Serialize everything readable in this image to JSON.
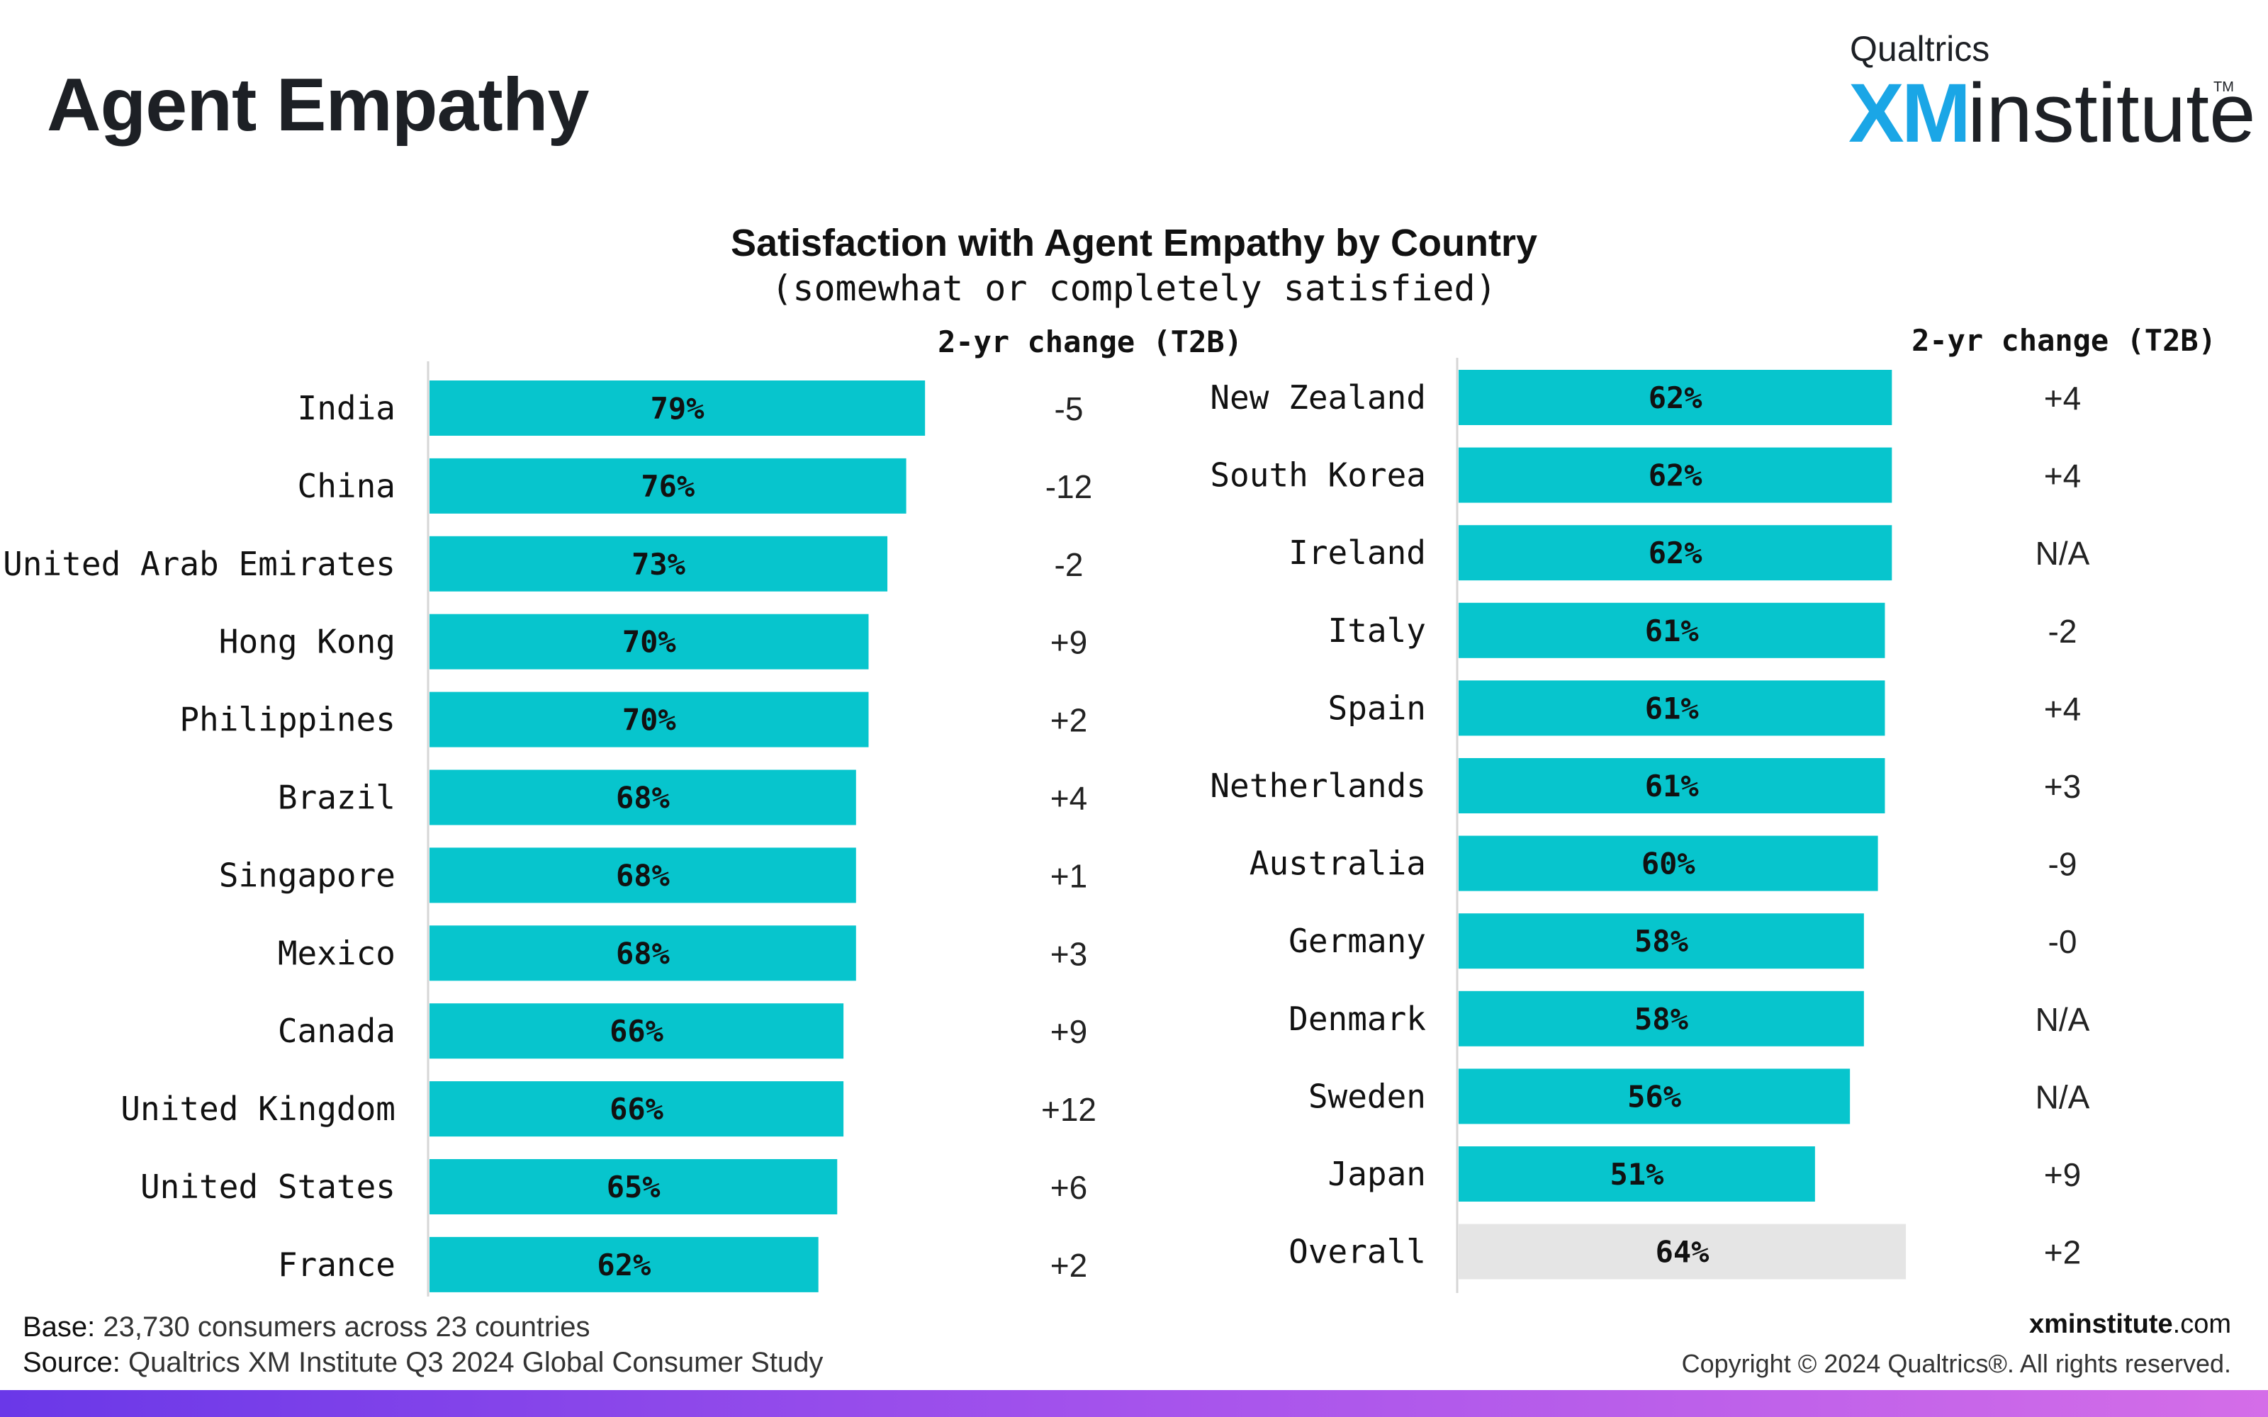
{
  "page": {
    "title": "Agent Empathy",
    "logo": {
      "brand": "Qualtrics",
      "mark": "XM",
      "product": "institute",
      "tm": "TM"
    },
    "footer": {
      "base_label": "Base:",
      "base_text": "23,730 consumers across 23 countries",
      "source_label": "Source:",
      "source_text": "Qualtrics XM Institute Q3 2024 Global Consumer Study",
      "url_bold": "xminstitute",
      "url_rest": ".com",
      "copyright": "Copyright © 2024 Qualtrics®. All rights reserved."
    }
  },
  "chart_data": {
    "type": "bar",
    "orientation": "horizontal",
    "title": "Satisfaction with Agent Empathy by Country",
    "subtitle": "(somewhat or completely satisfied)",
    "change_header": "2-yr change (T2B)",
    "xlim": [
      0,
      100
    ],
    "colors": {
      "bar": "#07c5cd",
      "overall_bar": "#e5e5e5"
    },
    "panels": [
      {
        "categories": [
          "India",
          "China",
          "United Arab Emirates",
          "Hong Kong",
          "Philippines",
          "Brazil",
          "Singapore",
          "Mexico",
          "Canada",
          "United Kingdom",
          "United States",
          "France"
        ],
        "values": [
          79,
          76,
          73,
          70,
          70,
          68,
          68,
          68,
          66,
          66,
          65,
          62
        ],
        "value_labels": [
          "79%",
          "76%",
          "73%",
          "70%",
          "70%",
          "68%",
          "68%",
          "68%",
          "66%",
          "66%",
          "65%",
          "62%"
        ],
        "changes": [
          "-5",
          "-12",
          "-2",
          "+9",
          "+2",
          "+4",
          "+1",
          "+3",
          "+9",
          "+12",
          "+6",
          "+2"
        ]
      },
      {
        "categories": [
          "New Zealand",
          "South Korea",
          "Ireland",
          "Italy",
          "Spain",
          "Netherlands",
          "Australia",
          "Germany",
          "Denmark",
          "Sweden",
          "Japan",
          "Overall"
        ],
        "values": [
          62,
          62,
          62,
          61,
          61,
          61,
          60,
          58,
          58,
          56,
          51,
          64
        ],
        "value_labels": [
          "62%",
          "62%",
          "62%",
          "61%",
          "61%",
          "61%",
          "60%",
          "58%",
          "58%",
          "56%",
          "51%",
          "64%"
        ],
        "changes": [
          "+4",
          "+4",
          "N/A",
          "-2",
          "+4",
          "+3",
          "-9",
          "-0",
          "N/A",
          "N/A",
          "+9",
          "+2"
        ],
        "highlight_last": true
      }
    ]
  }
}
